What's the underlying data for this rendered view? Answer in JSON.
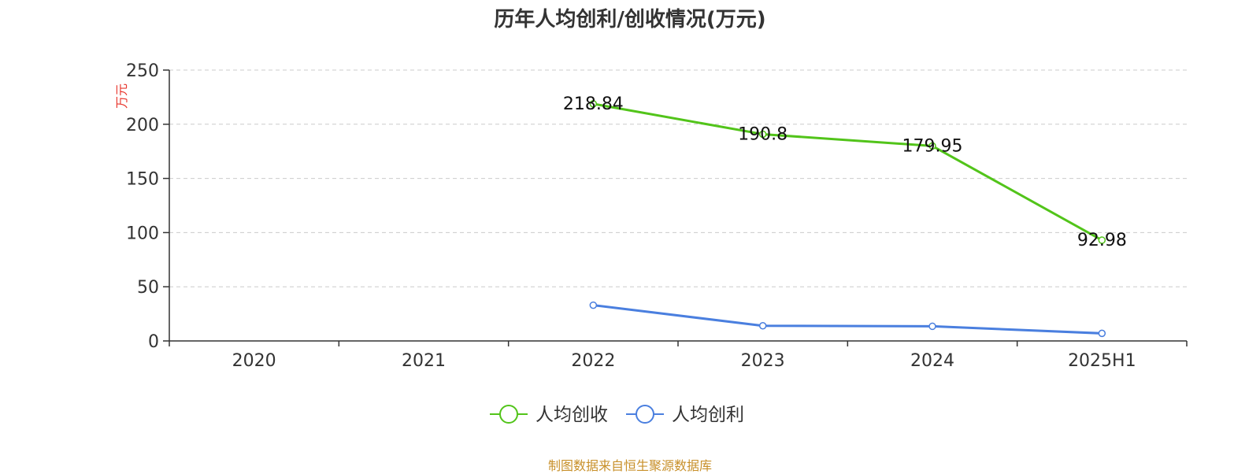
{
  "chart_data": {
    "type": "line",
    "title": "历年人均创利/创收情况(万元)",
    "ylabel": "万元",
    "xlabel": "",
    "categories": [
      "2020",
      "2021",
      "2022",
      "2023",
      "2024",
      "2025H1"
    ],
    "ylim": [
      0,
      250
    ],
    "yticks": [
      0,
      50,
      100,
      150,
      200,
      250
    ],
    "grid": true,
    "legend_position": "bottom",
    "series": [
      {
        "name": "人均创收",
        "color": "#52c41a",
        "values": [
          null,
          null,
          218.84,
          190.8,
          179.95,
          92.98
        ],
        "labels": [
          "",
          "",
          "218.84",
          "190.8",
          "179.95",
          "92.98"
        ]
      },
      {
        "name": "人均创利",
        "color": "#4a7fdf",
        "values": [
          null,
          null,
          33,
          14,
          13.5,
          7
        ],
        "labels": [
          "",
          "",
          "",
          "",
          "",
          ""
        ]
      }
    ]
  },
  "source": "制图数据来自恒生聚源数据库",
  "colors": {
    "unit_label": "#e8382f",
    "axis": "#333333",
    "grid": "#cccccc"
  }
}
